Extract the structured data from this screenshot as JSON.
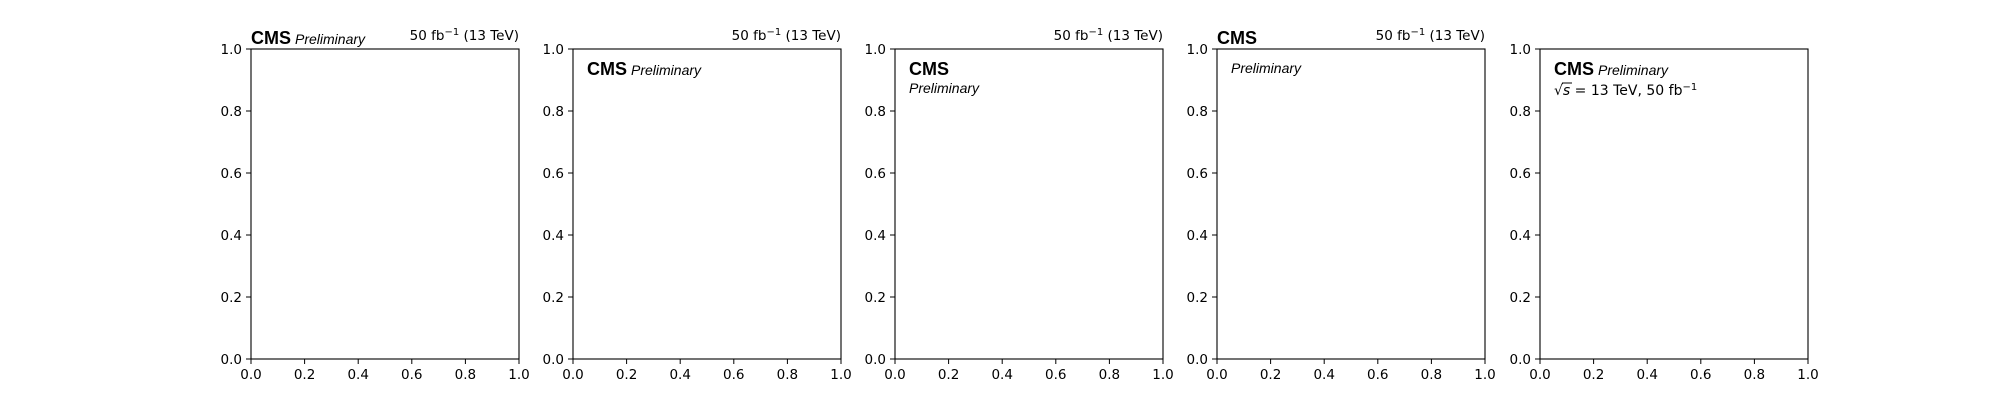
{
  "chart_data": [
    {
      "type": "scatter",
      "series": [],
      "xlim": [
        0,
        1
      ],
      "ylim": [
        0,
        1
      ],
      "xticks": [
        "0.0",
        "0.2",
        "0.4",
        "0.6",
        "0.8",
        "1.0"
      ],
      "yticks": [
        "0.0",
        "0.2",
        "0.4",
        "0.6",
        "0.8",
        "1.0"
      ],
      "grid": false,
      "cms_label": "CMS",
      "prelim_label": "Preliminary",
      "label_style": "outside-left-inline",
      "lumi": {
        "value": "50 fb",
        "exp": "−1",
        "energy": " (13 TeV)"
      }
    },
    {
      "type": "scatter",
      "series": [],
      "xlim": [
        0,
        1
      ],
      "ylim": [
        0,
        1
      ],
      "xticks": [
        "0.0",
        "0.2",
        "0.4",
        "0.6",
        "0.8",
        "1.0"
      ],
      "yticks": [
        "0.0",
        "0.2",
        "0.4",
        "0.6",
        "0.8",
        "1.0"
      ],
      "grid": false,
      "cms_label": "CMS",
      "prelim_label": "Preliminary",
      "label_style": "inside-inline",
      "lumi": {
        "value": "50 fb",
        "exp": "−1",
        "energy": " (13 TeV)"
      }
    },
    {
      "type": "scatter",
      "series": [],
      "xlim": [
        0,
        1
      ],
      "ylim": [
        0,
        1
      ],
      "xticks": [
        "0.0",
        "0.2",
        "0.4",
        "0.6",
        "0.8",
        "1.0"
      ],
      "yticks": [
        "0.0",
        "0.2",
        "0.4",
        "0.6",
        "0.8",
        "1.0"
      ],
      "grid": false,
      "cms_label": "CMS",
      "prelim_label": "Preliminary",
      "label_style": "inside-stacked",
      "lumi": {
        "value": "50 fb",
        "exp": "−1",
        "energy": " (13 TeV)"
      }
    },
    {
      "type": "scatter",
      "series": [],
      "xlim": [
        0,
        1
      ],
      "ylim": [
        0,
        1
      ],
      "xticks": [
        "0.0",
        "0.2",
        "0.4",
        "0.6",
        "0.8",
        "1.0"
      ],
      "yticks": [
        "0.0",
        "0.2",
        "0.4",
        "0.6",
        "0.8",
        "1.0"
      ],
      "grid": false,
      "cms_label": "CMS",
      "prelim_label": "Preliminary",
      "label_style": "outside-cms-inside-prelim",
      "lumi": {
        "value": "50 fb",
        "exp": "−1",
        "energy": " (13 TeV)"
      }
    },
    {
      "type": "scatter",
      "series": [],
      "xlim": [
        0,
        1
      ],
      "ylim": [
        0,
        1
      ],
      "xticks": [
        "0.0",
        "0.2",
        "0.4",
        "0.6",
        "0.8",
        "1.0"
      ],
      "yticks": [
        "0.0",
        "0.2",
        "0.4",
        "0.6",
        "0.8",
        "1.0"
      ],
      "grid": false,
      "cms_label": "CMS",
      "prelim_label": "Preliminary",
      "label_style": "inside-inline-with-energy",
      "energy_label": {
        "sqrt": "√",
        "s": "s",
        "rest": " = 13 TeV, 50 fb",
        "exp": "−1"
      }
    }
  ]
}
